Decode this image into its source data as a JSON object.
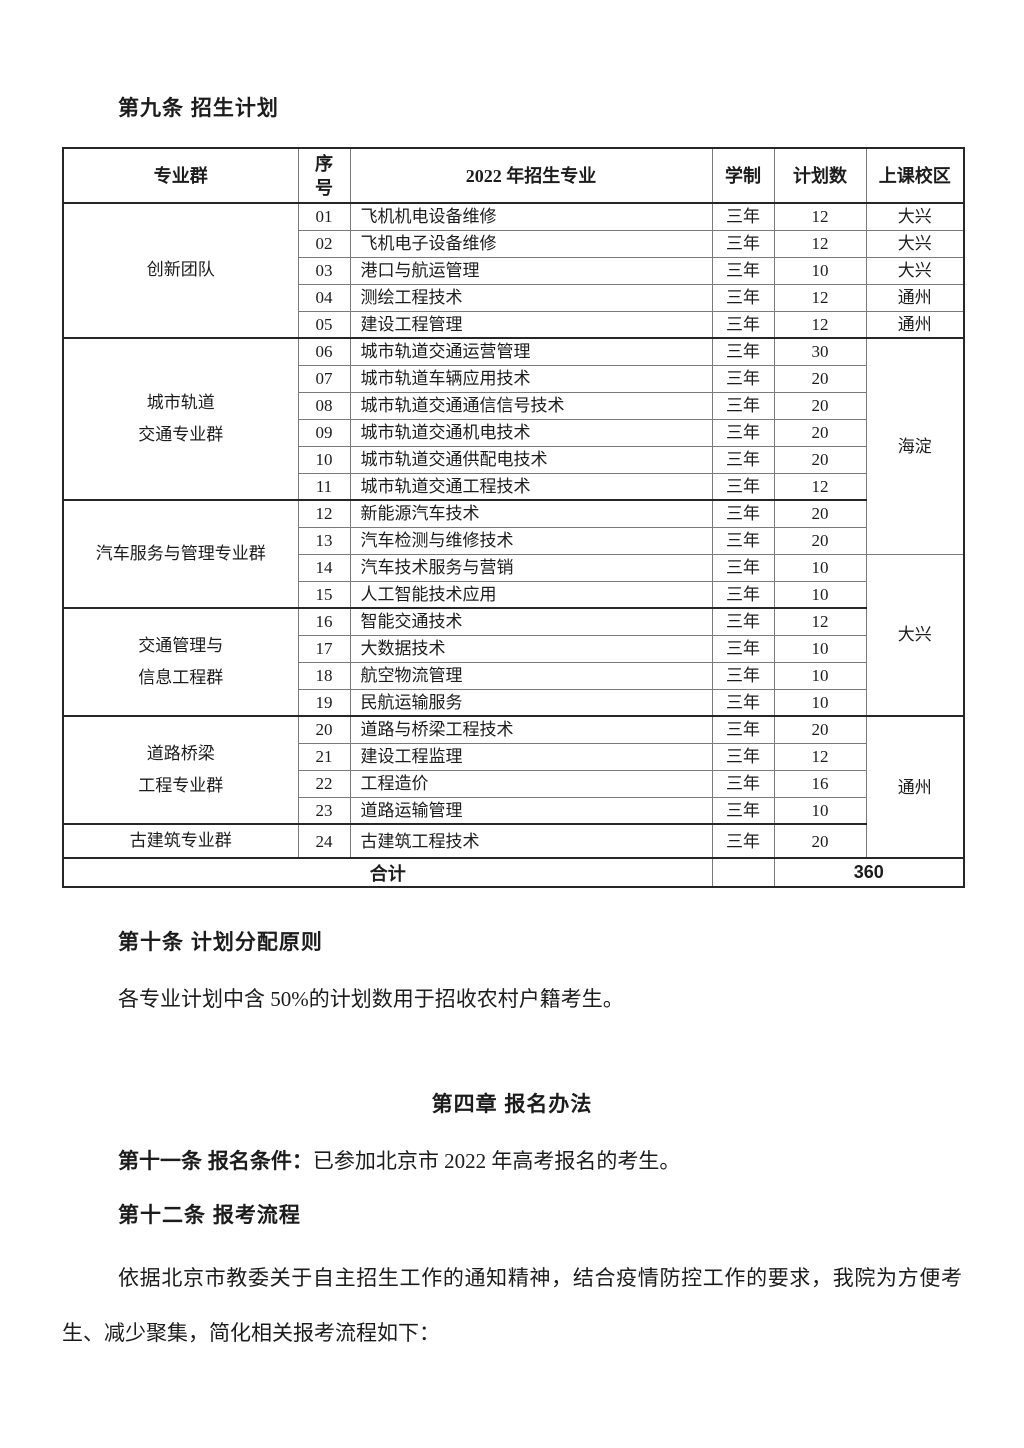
{
  "document": {
    "section9": {
      "heading": "第九条 招生计划"
    },
    "table": {
      "headers": [
        "专业群",
        "序号",
        "2022 年招生专业",
        "学制",
        "计划数",
        "上课校区"
      ],
      "groups": [
        {
          "label": "创新团队",
          "start": 1,
          "span": 5
        },
        {
          "label": "城市轨道\n交通专业群",
          "start": 6,
          "span": 6
        },
        {
          "label": "汽车服务与管理专业群",
          "start": 12,
          "span": 4
        },
        {
          "label": "交通管理与\n信息工程群",
          "start": 16,
          "span": 4
        },
        {
          "label": "道路桥梁\n工程专业群",
          "start": 20,
          "span": 4
        },
        {
          "label": "古建筑专业群",
          "start": 24,
          "span": 1
        }
      ],
      "campuses": [
        {
          "label": "大兴",
          "start": 1,
          "span": 1
        },
        {
          "label": "大兴",
          "start": 2,
          "span": 1
        },
        {
          "label": "大兴",
          "start": 3,
          "span": 1
        },
        {
          "label": "通州",
          "start": 4,
          "span": 1
        },
        {
          "label": "通州",
          "start": 5,
          "span": 1
        },
        {
          "label": "海淀",
          "start": 6,
          "span": 8
        },
        {
          "label": "大兴",
          "start": 14,
          "span": 6
        },
        {
          "label": "通州",
          "start": 20,
          "span": 5
        }
      ],
      "rows": [
        [
          "01",
          "飞机机电设备维修",
          "三年",
          "12"
        ],
        [
          "02",
          "飞机电子设备维修",
          "三年",
          "12"
        ],
        [
          "03",
          "港口与航运管理",
          "三年",
          "10"
        ],
        [
          "04",
          "测绘工程技术",
          "三年",
          "12"
        ],
        [
          "05",
          "建设工程管理",
          "三年",
          "12"
        ],
        [
          "06",
          "城市轨道交通运营管理",
          "三年",
          "30"
        ],
        [
          "07",
          "城市轨道车辆应用技术",
          "三年",
          "20"
        ],
        [
          "08",
          "城市轨道交通通信信号技术",
          "三年",
          "20"
        ],
        [
          "09",
          "城市轨道交通机电技术",
          "三年",
          "20"
        ],
        [
          "10",
          "城市轨道交通供配电技术",
          "三年",
          "20"
        ],
        [
          "11",
          "城市轨道交通工程技术",
          "三年",
          "12"
        ],
        [
          "12",
          "新能源汽车技术",
          "三年",
          "20"
        ],
        [
          "13",
          "汽车检测与维修技术",
          "三年",
          "20"
        ],
        [
          "14",
          "汽车技术服务与营销",
          "三年",
          "10"
        ],
        [
          "15",
          "人工智能技术应用",
          "三年",
          "10"
        ],
        [
          "16",
          "智能交通技术",
          "三年",
          "12"
        ],
        [
          "17",
          "大数据技术",
          "三年",
          "10"
        ],
        [
          "18",
          "航空物流管理",
          "三年",
          "10"
        ],
        [
          "19",
          "民航运输服务",
          "三年",
          "10"
        ],
        [
          "20",
          "道路与桥梁工程技术",
          "三年",
          "20"
        ],
        [
          "21",
          "建设工程监理",
          "三年",
          "12"
        ],
        [
          "22",
          "工程造价",
          "三年",
          "16"
        ],
        [
          "23",
          "道路运输管理",
          "三年",
          "10"
        ],
        [
          "24",
          "古建筑工程技术",
          "三年",
          "20"
        ]
      ],
      "total_label": "合计",
      "total_value": "360"
    },
    "section10": {
      "heading": "第十条 计划分配原则",
      "body": "各专业计划中含 50%的计划数用于招收农村户籍考生。"
    },
    "chapter4": {
      "heading": "第四章 报名办法"
    },
    "section11": {
      "label": "第十一条 报名条件：",
      "body": "已参加北京市 2022 年高考报名的考生。"
    },
    "section12": {
      "heading": "第十二条 报考流程"
    },
    "paragraph": "依据北京市教委关于自主招生工作的通知精神，结合疫情防控工作的要求，我院为方便考生、减少聚集，简化相关报考流程如下："
  }
}
